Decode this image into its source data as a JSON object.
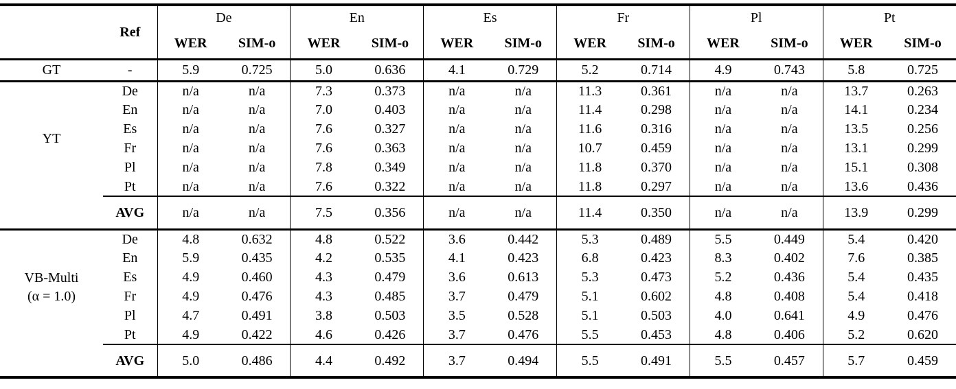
{
  "colors": {
    "text": "#000000",
    "background": "#ffffff",
    "rule": "#000000"
  },
  "table": {
    "header": {
      "model": "",
      "ref": "Ref",
      "groups": [
        "De",
        "En",
        "Es",
        "Fr",
        "Pl",
        "Pt"
      ],
      "metrics": [
        "WER",
        "SIM-o"
      ]
    },
    "sections": [
      {
        "model": [
          "GT"
        ],
        "rows": [
          {
            "ref": "-",
            "values": [
              "5.9",
              "0.725",
              "5.0",
              "0.636",
              "4.1",
              "0.729",
              "5.2",
              "0.714",
              "4.9",
              "0.743",
              "5.8",
              "0.725"
            ]
          }
        ]
      },
      {
        "model": [
          "YT"
        ],
        "rows": [
          {
            "ref": "De",
            "values": [
              "n/a",
              "n/a",
              "7.3",
              "0.373",
              "n/a",
              "n/a",
              "11.3",
              "0.361",
              "n/a",
              "n/a",
              "13.7",
              "0.263"
            ]
          },
          {
            "ref": "En",
            "values": [
              "n/a",
              "n/a",
              "7.0",
              "0.403",
              "n/a",
              "n/a",
              "11.4",
              "0.298",
              "n/a",
              "n/a",
              "14.1",
              "0.234"
            ]
          },
          {
            "ref": "Es",
            "values": [
              "n/a",
              "n/a",
              "7.6",
              "0.327",
              "n/a",
              "n/a",
              "11.6",
              "0.316",
              "n/a",
              "n/a",
              "13.5",
              "0.256"
            ]
          },
          {
            "ref": "Fr",
            "values": [
              "n/a",
              "n/a",
              "7.6",
              "0.363",
              "n/a",
              "n/a",
              "10.7",
              "0.459",
              "n/a",
              "n/a",
              "13.1",
              "0.299"
            ]
          },
          {
            "ref": "Pl",
            "values": [
              "n/a",
              "n/a",
              "7.8",
              "0.349",
              "n/a",
              "n/a",
              "11.8",
              "0.370",
              "n/a",
              "n/a",
              "15.1",
              "0.308"
            ]
          },
          {
            "ref": "Pt",
            "values": [
              "n/a",
              "n/a",
              "7.6",
              "0.322",
              "n/a",
              "n/a",
              "11.8",
              "0.297",
              "n/a",
              "n/a",
              "13.6",
              "0.436"
            ]
          }
        ],
        "avg": {
          "ref": "AVG",
          "values": [
            "n/a",
            "n/a",
            "7.5",
            "0.356",
            "n/a",
            "n/a",
            "11.4",
            "0.350",
            "n/a",
            "n/a",
            "13.9",
            "0.299"
          ]
        }
      },
      {
        "model": [
          "VB-Multi",
          "(α = 1.0)"
        ],
        "rows": [
          {
            "ref": "De",
            "values": [
              "4.8",
              "0.632",
              "4.8",
              "0.522",
              "3.6",
              "0.442",
              "5.3",
              "0.489",
              "5.5",
              "0.449",
              "5.4",
              "0.420"
            ]
          },
          {
            "ref": "En",
            "values": [
              "5.9",
              "0.435",
              "4.2",
              "0.535",
              "4.1",
              "0.423",
              "6.8",
              "0.423",
              "8.3",
              "0.402",
              "7.6",
              "0.385"
            ]
          },
          {
            "ref": "Es",
            "values": [
              "4.9",
              "0.460",
              "4.3",
              "0.479",
              "3.6",
              "0.613",
              "5.3",
              "0.473",
              "5.2",
              "0.436",
              "5.4",
              "0.435"
            ]
          },
          {
            "ref": "Fr",
            "values": [
              "4.9",
              "0.476",
              "4.3",
              "0.485",
              "3.7",
              "0.479",
              "5.1",
              "0.602",
              "4.8",
              "0.408",
              "5.4",
              "0.418"
            ]
          },
          {
            "ref": "Pl",
            "values": [
              "4.7",
              "0.491",
              "3.8",
              "0.503",
              "3.5",
              "0.528",
              "5.1",
              "0.503",
              "4.0",
              "0.641",
              "4.9",
              "0.476"
            ]
          },
          {
            "ref": "Pt",
            "values": [
              "4.9",
              "0.422",
              "4.6",
              "0.426",
              "3.7",
              "0.476",
              "5.5",
              "0.453",
              "4.8",
              "0.406",
              "5.2",
              "0.620"
            ]
          }
        ],
        "avg": {
          "ref": "AVG",
          "values": [
            "5.0",
            "0.486",
            "4.4",
            "0.492",
            "3.7",
            "0.494",
            "5.5",
            "0.491",
            "5.5",
            "0.457",
            "5.7",
            "0.459"
          ]
        }
      }
    ]
  }
}
